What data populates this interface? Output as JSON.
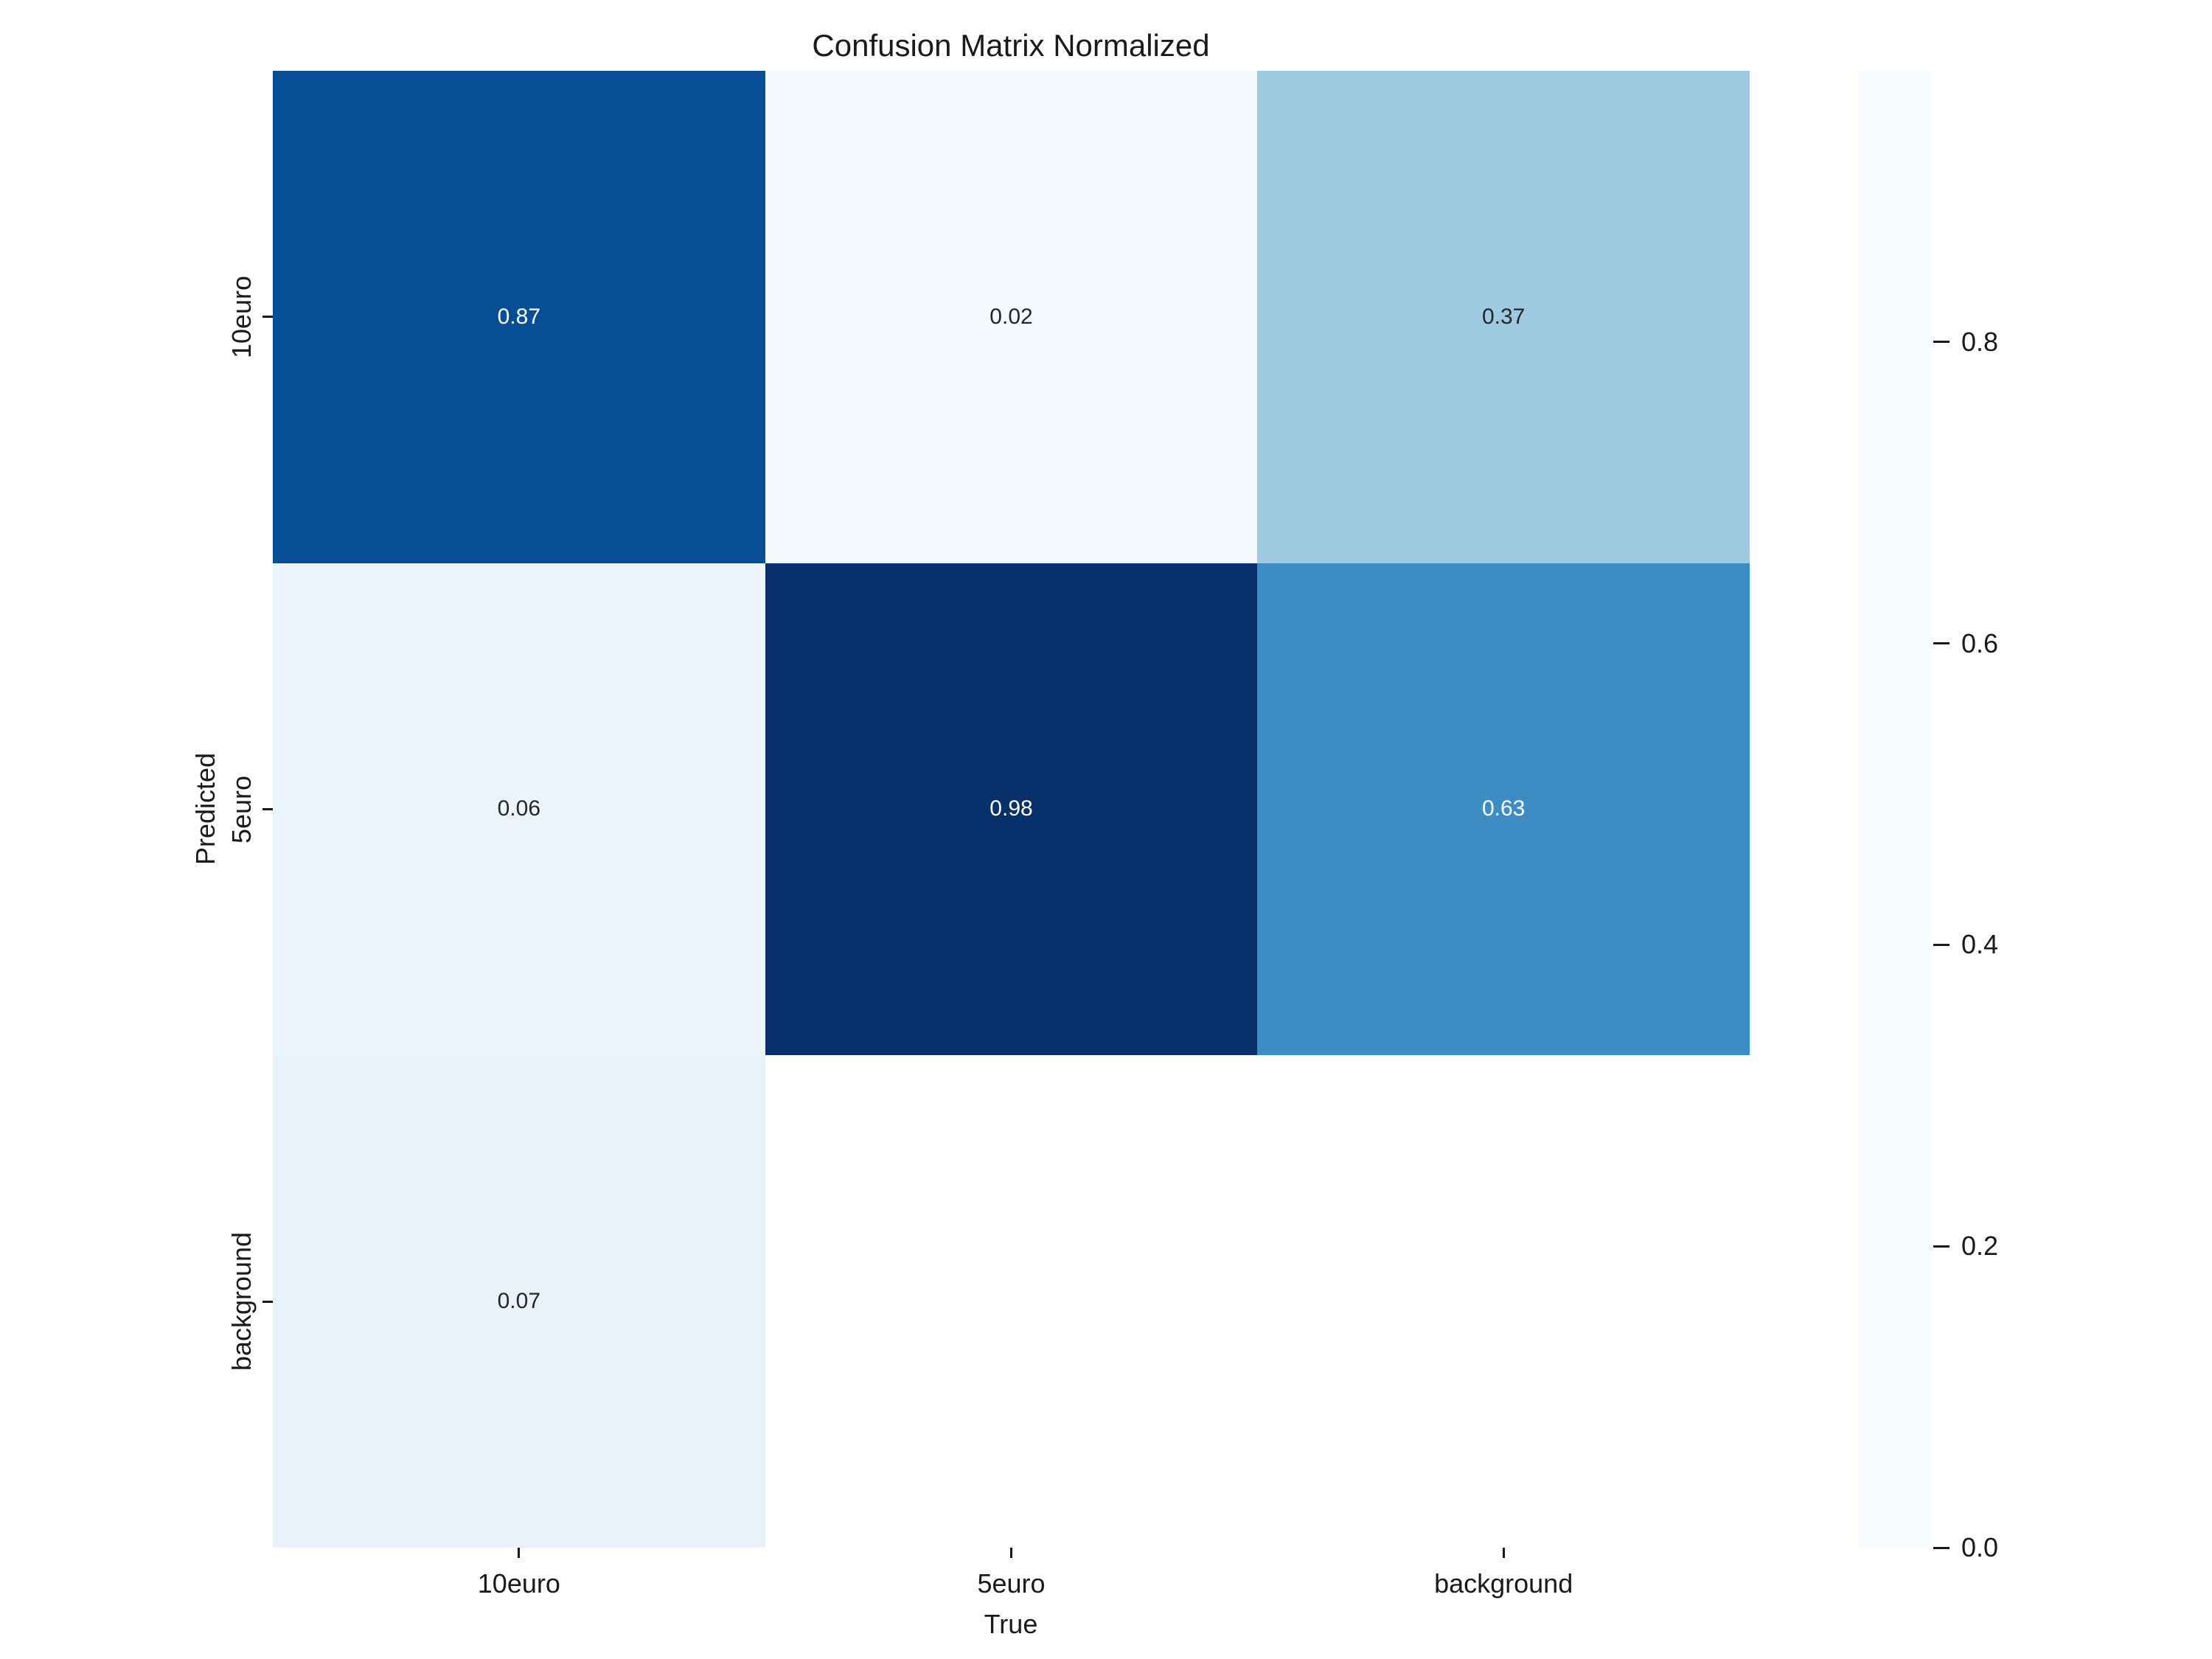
{
  "title": "Confusion Matrix Normalized",
  "chart_data": {
    "type": "heatmap",
    "title": "Confusion Matrix Normalized",
    "xlabel": "True",
    "ylabel": "Predicted",
    "x_categories": [
      "10euro",
      "5euro",
      "background"
    ],
    "y_categories": [
      "10euro",
      "5euro",
      "background"
    ],
    "matrix": [
      [
        0.87,
        0.02,
        0.37
      ],
      [
        0.06,
        0.98,
        0.63
      ],
      [
        0.07,
        null,
        null
      ]
    ],
    "value_labels": [
      [
        "0.87",
        "0.02",
        "0.37"
      ],
      [
        "0.06",
        "0.98",
        "0.63"
      ],
      [
        "0.07",
        "",
        ""
      ]
    ],
    "vmin": 0.0,
    "vmax": 0.98,
    "colormap": "Blues",
    "colorbar_ticks": [
      0.0,
      0.2,
      0.4,
      0.6,
      0.8
    ],
    "colorbar_tick_labels": [
      "0.0",
      "0.2",
      "0.4",
      "0.6",
      "0.8"
    ],
    "legend_position": "right-colorbar",
    "grid": false
  },
  "colors": {
    "background": "#ffffff",
    "empty_cell": "#ffffff",
    "axis_text": "#1a1a1a",
    "annotation_dark": "#262626",
    "annotation_light": "#ffffff",
    "blues_anchors": [
      "#f7fbff",
      "#deebf7",
      "#c6dbef",
      "#9ecae1",
      "#6baed6",
      "#4292c6",
      "#2171b5",
      "#08519c",
      "#08306b"
    ]
  }
}
